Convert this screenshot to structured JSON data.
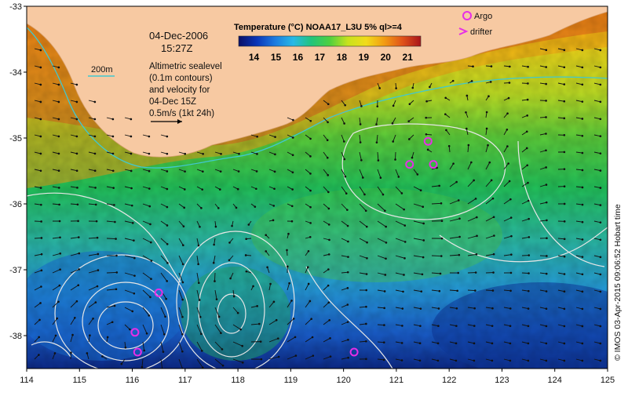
{
  "map": {
    "lon_range": [
      114,
      125
    ],
    "lat_range": [
      -38.5,
      -33
    ],
    "lon_ticks": [
      "114",
      "115",
      "116",
      "117",
      "118",
      "119",
      "120",
      "121",
      "122",
      "123",
      "124",
      "125"
    ],
    "lat_ticks": [
      "-33",
      "-34",
      "-35",
      "-36",
      "-37",
      "-38"
    ],
    "land_color": "#f7c9a2",
    "contour_color": "#e6e6e6",
    "isobath_color": "#40c8d0"
  },
  "colorbar": {
    "title": "Temperature (°C) NOAA17_L3U 5% ql>=4",
    "tick_labels": [
      "14",
      "15",
      "16",
      "17",
      "18",
      "19",
      "20",
      "21"
    ],
    "range": [
      13.3,
      21.6
    ],
    "colors": [
      "#0b0f66",
      "#0a35b8",
      "#1c7be0",
      "#27b9e6",
      "#22c47a",
      "#4fd040",
      "#c8e21d",
      "#f1dc1a",
      "#f29c12",
      "#e0521a",
      "#a8141a"
    ]
  },
  "annotations": {
    "date": "04-Dec-2006",
    "time": "15:27Z",
    "isobath_label": "200m",
    "sealevel_note": [
      "Altimetric sealevel",
      "(0.1m contours)",
      "and velocity for",
      "04-Dec 15Z",
      "0.5m/s (1kt 24h)"
    ]
  },
  "legend": {
    "argo_label": "Argo",
    "drifter_label": "drifter",
    "marker_color": "#e62ee6"
  },
  "argo_floats": [
    {
      "lon": 121.6,
      "lat": -35.05
    },
    {
      "lon": 121.25,
      "lat": -35.4
    },
    {
      "lon": 121.7,
      "lat": -35.4
    },
    {
      "lon": 116.5,
      "lat": -37.35
    },
    {
      "lon": 116.05,
      "lat": -37.95
    },
    {
      "lon": 116.1,
      "lat": -38.25
    },
    {
      "lon": 120.2,
      "lat": -38.25
    }
  ],
  "credit": "© IMOS 03-Apr-2015 09:06:52 Hobart time"
}
